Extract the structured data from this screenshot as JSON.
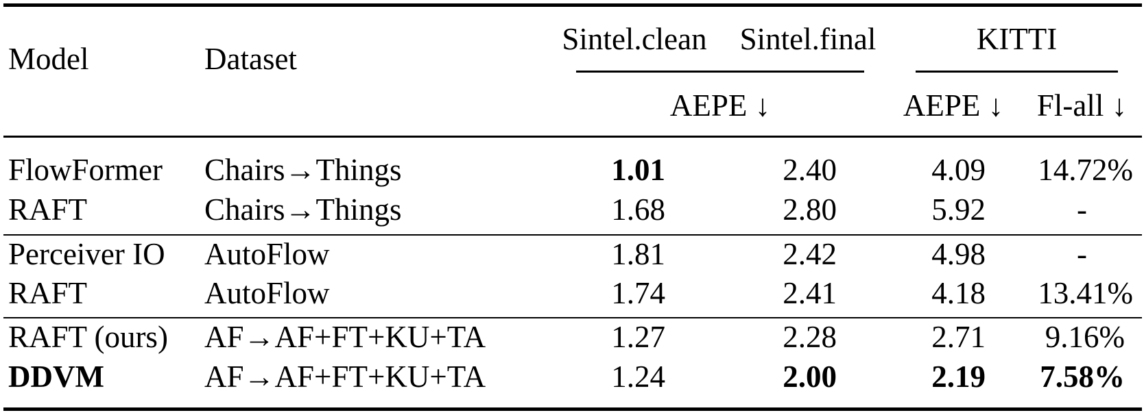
{
  "table": {
    "header": {
      "model": "Model",
      "dataset": "Dataset",
      "sintel_clean": "Sintel.clean",
      "sintel_final": "Sintel.final",
      "kitti": "KITTI",
      "sintel_metric": "AEPE ↓",
      "kitti_aepe": "AEPE ↓",
      "kitti_flall": "Fl-all ↓"
    },
    "rows": [
      {
        "model": "FlowFormer",
        "dataset": "Chairs→Things",
        "sintel_clean": "1.01",
        "sintel_final": "2.40",
        "kitti_aepe": "4.09",
        "kitti_flall": "14.72%"
      },
      {
        "model": "RAFT",
        "dataset": "Chairs→Things",
        "sintel_clean": "1.68",
        "sintel_final": "2.80",
        "kitti_aepe": "5.92",
        "kitti_flall": "-"
      },
      {
        "model": "Perceiver IO",
        "dataset": "AutoFlow",
        "sintel_clean": "1.81",
        "sintel_final": "2.42",
        "kitti_aepe": "4.98",
        "kitti_flall": "-"
      },
      {
        "model": "RAFT",
        "dataset": "AutoFlow",
        "sintel_clean": "1.74",
        "sintel_final": "2.41",
        "kitti_aepe": "4.18",
        "kitti_flall": "13.41%"
      },
      {
        "model": "RAFT (ours)",
        "dataset": "AF→AF+FT+KU+TA",
        "sintel_clean": "1.27",
        "sintel_final": "2.28",
        "kitti_aepe": "2.71",
        "kitti_flall": "9.16%"
      },
      {
        "model": "DDVM",
        "dataset": "AF→AF+FT+KU+TA",
        "sintel_clean": "1.24",
        "sintel_final": "2.00",
        "kitti_aepe": "2.19",
        "kitti_flall": "7.58%"
      }
    ]
  }
}
